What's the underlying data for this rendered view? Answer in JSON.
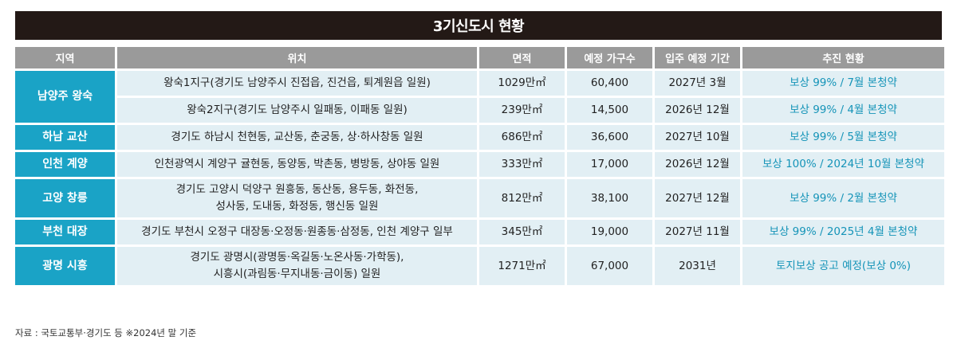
{
  "title": "3기신도시 현황",
  "headers": {
    "region": "지역",
    "location": "위치",
    "area": "면적",
    "households": "예정 가구수",
    "move_in": "입주 예정 기간",
    "status": "추진 현황"
  },
  "rows": [
    {
      "region": "남양주 왕숙",
      "location": "왕숙1지구(경기도 남양주시 진접읍, 진건읍, 퇴계원읍 일원)",
      "area": "1029만㎡",
      "households": "60,400",
      "move_in": "2027년 3월",
      "status": "보상 99% / 7월 본청약"
    },
    {
      "location": "왕숙2지구(경기도 남양주시 일패동, 이패동 일원)",
      "area": "239만㎡",
      "households": "14,500",
      "move_in": "2026년 12월",
      "status": "보상 99% / 4월 본청약"
    },
    {
      "region": "하남 교산",
      "location": "경기도 하남시 천현동, 교산동, 춘궁동, 상·하사창동 일원",
      "area": "686만㎡",
      "households": "36,600",
      "move_in": "2027년 10월",
      "status": "보상 99% / 5월 본청약"
    },
    {
      "region": "인천 계양",
      "location": "인천광역시 계양구 귤현동, 동양동, 박촌동, 병방동, 상야동 일원",
      "area": "333만㎡",
      "households": "17,000",
      "move_in": "2026년 12월",
      "status": "보상 100% / 2024년 10월 본청약"
    },
    {
      "region": "고양 창릉",
      "location_line1": "경기도 고양시 덕양구 원흥동, 동산동, 용두동, 화전동,",
      "location_line2": "성사동, 도내동, 화정동, 행신동 일원",
      "area": "812만㎡",
      "households": "38,100",
      "move_in": "2027년 12월",
      "status": "보상 99% / 2월 본청약"
    },
    {
      "region": "부천 대장",
      "location": "경기도 부천시 오정구 대장동·오정동·원종동·삼정동, 인천 계양구 일부",
      "area": "345만㎡",
      "households": "19,000",
      "move_in": "2027년 11월",
      "status": "보상 99% / 2025년 4월 본청약"
    },
    {
      "region": "광명 시흥",
      "location_line1": "경기도 광명시(광명동·옥길동·노온사동·가학동),",
      "location_line2": "시흥시(과림동·무지내동·금이동) 일원",
      "area": "1271만㎡",
      "households": "67,000",
      "move_in": "2031년",
      "status": "토지보상 공고 예정(보상 0%)"
    }
  ],
  "footnote": "자료 : 국토교통부·경기도 등 ※2024년 말 기준",
  "colors": {
    "title_bg": "#231916",
    "header_bg": "#9a9a9a",
    "region_bg": "#1aa3c6",
    "cell_bg": "#e2eff4",
    "status_text": "#1594b8"
  }
}
